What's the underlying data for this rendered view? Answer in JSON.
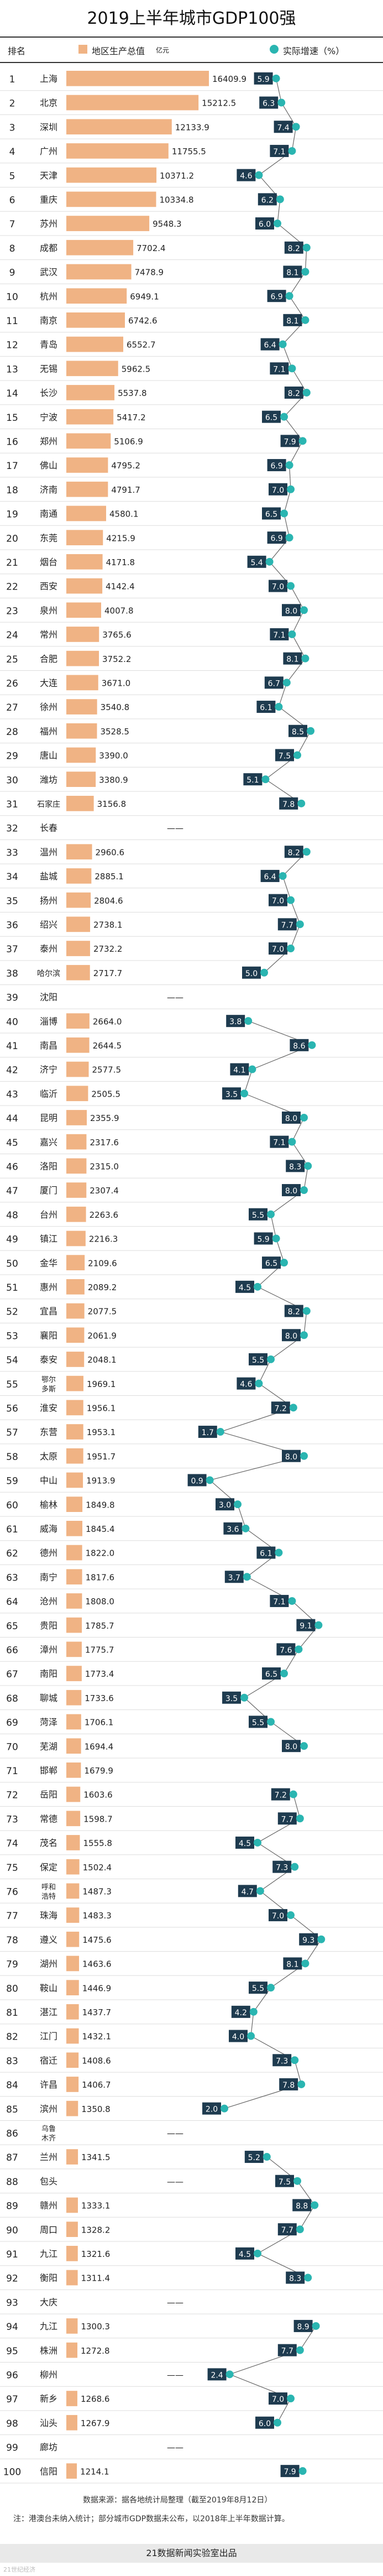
{
  "title": "2019上半年城市GDP100强",
  "legend": {
    "rank_header": "排名",
    "gdp_label": "地区生产总值",
    "gdp_unit": "亿元",
    "growth_label": "实际增速（%）"
  },
  "colors": {
    "bar": "#f0b384",
    "dot": "#2ab5b1",
    "label_bg": "#1e3b4f",
    "text": "#222222"
  },
  "chart_data": {
    "type": "bar",
    "title": "2019上半年城市GDP100强",
    "series": [
      {
        "name": "地区生产总值（亿元）",
        "type": "bar"
      },
      {
        "name": "实际增速（%）",
        "type": "line"
      }
    ],
    "rows": [
      {
        "rank": "1",
        "city": "上海",
        "gdp": 16409.9,
        "gdp_label": "16409.9",
        "growth": 5.9,
        "growth_label": "5.9"
      },
      {
        "rank": "2",
        "city": "北京",
        "gdp": 15212.5,
        "gdp_label": "15212.5",
        "growth": 6.3,
        "growth_label": "6.3"
      },
      {
        "rank": "3",
        "city": "深圳",
        "gdp": 12133.9,
        "gdp_label": "12133.9",
        "growth": 7.4,
        "growth_label": "7.4"
      },
      {
        "rank": "4",
        "city": "广州",
        "gdp": 11755.5,
        "gdp_label": "11755.5",
        "growth": 7.1,
        "growth_label": "7.1"
      },
      {
        "rank": "5",
        "city": "天津",
        "gdp": 10371.2,
        "gdp_label": "10371.2",
        "growth": 4.6,
        "growth_label": "4.6"
      },
      {
        "rank": "6",
        "city": "重庆",
        "gdp": 10334.8,
        "gdp_label": "10334.8",
        "growth": 6.2,
        "growth_label": "6.2"
      },
      {
        "rank": "7",
        "city": "苏州",
        "gdp": 9548.3,
        "gdp_label": "9548.3",
        "growth": 6.0,
        "growth_label": "6.0"
      },
      {
        "rank": "8",
        "city": "成都",
        "gdp": 7702.4,
        "gdp_label": "7702.4",
        "growth": 8.2,
        "growth_label": "8.2"
      },
      {
        "rank": "9",
        "city": "武汉",
        "gdp": 7478.9,
        "gdp_label": "7478.9",
        "growth": 8.1,
        "growth_label": "8.1"
      },
      {
        "rank": "10",
        "city": "杭州",
        "gdp": 6949.1,
        "gdp_label": "6949.1",
        "growth": 6.9,
        "growth_label": "6.9"
      },
      {
        "rank": "11",
        "city": "南京",
        "gdp": 6742.6,
        "gdp_label": "6742.6",
        "growth": 8.1,
        "growth_label": "8.1"
      },
      {
        "rank": "12",
        "city": "青岛",
        "gdp": 6552.7,
        "gdp_label": "6552.7",
        "growth": 6.4,
        "growth_label": "6.4"
      },
      {
        "rank": "13",
        "city": "无锡",
        "gdp": 5962.5,
        "gdp_label": "5962.5",
        "growth": 7.1,
        "growth_label": "7.1"
      },
      {
        "rank": "14",
        "city": "长沙",
        "gdp": 5537.8,
        "gdp_label": "5537.8",
        "growth": 8.2,
        "growth_label": "8.2"
      },
      {
        "rank": "15",
        "city": "宁波",
        "gdp": 5417.2,
        "gdp_label": "5417.2",
        "growth": 6.5,
        "growth_label": "6.5"
      },
      {
        "rank": "16",
        "city": "郑州",
        "gdp": 5106.9,
        "gdp_label": "5106.9",
        "growth": 7.9,
        "growth_label": "7.9"
      },
      {
        "rank": "17",
        "city": "佛山",
        "gdp": 4795.2,
        "gdp_label": "4795.2",
        "growth": 6.9,
        "growth_label": "6.9"
      },
      {
        "rank": "18",
        "city": "济南",
        "gdp": 4791.7,
        "gdp_label": "4791.7",
        "growth": 7.0,
        "growth_label": "7.0"
      },
      {
        "rank": "19",
        "city": "南通",
        "gdp": 4580.1,
        "gdp_label": "4580.1",
        "growth": 6.5,
        "growth_label": "6.5"
      },
      {
        "rank": "20",
        "city": "东莞",
        "gdp": 4215.9,
        "gdp_label": "4215.9",
        "growth": 6.9,
        "growth_label": "6.9"
      },
      {
        "rank": "21",
        "city": "烟台",
        "gdp": 4171.8,
        "gdp_label": "4171.8",
        "growth": 5.4,
        "growth_label": "5.4"
      },
      {
        "rank": "22",
        "city": "西安",
        "gdp": 4142.4,
        "gdp_label": "4142.4",
        "growth": 7.0,
        "growth_label": "7.0"
      },
      {
        "rank": "23",
        "city": "泉州",
        "gdp": 4007.8,
        "gdp_label": "4007.8",
        "growth": 8.0,
        "growth_label": "8.0"
      },
      {
        "rank": "24",
        "city": "常州",
        "gdp": 3765.6,
        "gdp_label": "3765.6",
        "growth": 7.1,
        "growth_label": "7.1"
      },
      {
        "rank": "25",
        "city": "合肥",
        "gdp": 3752.2,
        "gdp_label": "3752.2",
        "growth": 8.1,
        "growth_label": "8.1"
      },
      {
        "rank": "26",
        "city": "大连",
        "gdp": 3671.0,
        "gdp_label": "3671.0",
        "growth": 6.7,
        "growth_label": "6.7"
      },
      {
        "rank": "27",
        "city": "徐州",
        "gdp": 3540.8,
        "gdp_label": "3540.8",
        "growth": 6.1,
        "growth_label": "6.1"
      },
      {
        "rank": "28",
        "city": "福州",
        "gdp": 3528.5,
        "gdp_label": "3528.5",
        "growth": 8.5,
        "growth_label": "8.5"
      },
      {
        "rank": "29",
        "city": "唐山",
        "gdp": 3390.0,
        "gdp_label": "3390.0",
        "growth": 7.5,
        "growth_label": "7.5"
      },
      {
        "rank": "30",
        "city": "潍坊",
        "gdp": 3380.9,
        "gdp_label": "3380.9",
        "growth": 5.1,
        "growth_label": "5.1"
      },
      {
        "rank": "31",
        "city": "石家庄",
        "gdp": 3156.8,
        "gdp_label": "3156.8",
        "growth": 7.8,
        "growth_label": "7.8"
      },
      {
        "rank": "32",
        "city": "长春",
        "gdp": null,
        "gdp_label": "——",
        "growth": null,
        "growth_label": ""
      },
      {
        "rank": "33",
        "city": "温州",
        "gdp": 2960.6,
        "gdp_label": "2960.6",
        "growth": 8.2,
        "growth_label": "8.2"
      },
      {
        "rank": "34",
        "city": "盐城",
        "gdp": 2885.1,
        "gdp_label": "2885.1",
        "growth": 6.4,
        "growth_label": "6.4"
      },
      {
        "rank": "35",
        "city": "扬州",
        "gdp": 2804.6,
        "gdp_label": "2804.6",
        "growth": 7.0,
        "growth_label": "7.0"
      },
      {
        "rank": "36",
        "city": "绍兴",
        "gdp": 2738.1,
        "gdp_label": "2738.1",
        "growth": 7.7,
        "growth_label": "7.7"
      },
      {
        "rank": "37",
        "city": "泰州",
        "gdp": 2732.2,
        "gdp_label": "2732.2",
        "growth": 7.0,
        "growth_label": "7.0"
      },
      {
        "rank": "38",
        "city": "哈尔滨",
        "gdp": 2717.7,
        "gdp_label": "2717.7",
        "growth": 5.0,
        "growth_label": "5.0"
      },
      {
        "rank": "39",
        "city": "沈阳",
        "gdp": null,
        "gdp_label": "——",
        "growth": null,
        "growth_label": ""
      },
      {
        "rank": "40",
        "city": "淄博",
        "gdp": 2664.0,
        "gdp_label": "2664.0",
        "growth": 3.8,
        "growth_label": "3.8"
      },
      {
        "rank": "41",
        "city": "南昌",
        "gdp": 2644.5,
        "gdp_label": "2644.5",
        "growth": 8.6,
        "growth_label": "8.6"
      },
      {
        "rank": "42",
        "city": "济宁",
        "gdp": 2577.5,
        "gdp_label": "2577.5",
        "growth": 4.1,
        "growth_label": "4.1"
      },
      {
        "rank": "43",
        "city": "临沂",
        "gdp": 2505.5,
        "gdp_label": "2505.5",
        "growth": 3.5,
        "growth_label": "3.5"
      },
      {
        "rank": "44",
        "city": "昆明",
        "gdp": 2355.9,
        "gdp_label": "2355.9",
        "growth": 8.0,
        "growth_label": "8.0"
      },
      {
        "rank": "45",
        "city": "嘉兴",
        "gdp": 2317.6,
        "gdp_label": "2317.6",
        "growth": 7.1,
        "growth_label": "7.1"
      },
      {
        "rank": "46",
        "city": "洛阳",
        "gdp": 2315.0,
        "gdp_label": "2315.0",
        "growth": 8.3,
        "growth_label": "8.3"
      },
      {
        "rank": "47",
        "city": "厦门",
        "gdp": 2307.4,
        "gdp_label": "2307.4",
        "growth": 8.0,
        "growth_label": "8.0"
      },
      {
        "rank": "48",
        "city": "台州",
        "gdp": 2263.6,
        "gdp_label": "2263.6",
        "growth": 5.5,
        "growth_label": "5.5"
      },
      {
        "rank": "49",
        "city": "镇江",
        "gdp": 2216.3,
        "gdp_label": "2216.3",
        "growth": 5.9,
        "growth_label": "5.9"
      },
      {
        "rank": "50",
        "city": "金华",
        "gdp": 2109.6,
        "gdp_label": "2109.6",
        "growth": 6.5,
        "growth_label": "6.5"
      },
      {
        "rank": "51",
        "city": "惠州",
        "gdp": 2089.2,
        "gdp_label": "2089.2",
        "growth": 4.5,
        "growth_label": "4.5"
      },
      {
        "rank": "52",
        "city": "宜昌",
        "gdp": 2077.5,
        "gdp_label": "2077.5",
        "growth": 8.2,
        "growth_label": "8.2"
      },
      {
        "rank": "53",
        "city": "襄阳",
        "gdp": 2061.9,
        "gdp_label": "2061.9",
        "growth": 8.0,
        "growth_label": "8.0"
      },
      {
        "rank": "54",
        "city": "泰安",
        "gdp": 2048.1,
        "gdp_label": "2048.1",
        "growth": 5.5,
        "growth_label": "5.5"
      },
      {
        "rank": "55",
        "city": "鄂尔多斯",
        "gdp": 1969.1,
        "gdp_label": "1969.1",
        "growth": 4.6,
        "growth_label": "4.6"
      },
      {
        "rank": "56",
        "city": "淮安",
        "gdp": 1956.1,
        "gdp_label": "1956.1",
        "growth": 7.2,
        "growth_label": "7.2"
      },
      {
        "rank": "57",
        "city": "东营",
        "gdp": 1953.1,
        "gdp_label": "1953.1",
        "growth": 1.7,
        "growth_label": "1.7"
      },
      {
        "rank": "58",
        "city": "太原",
        "gdp": 1951.7,
        "gdp_label": "1951.7",
        "growth": 8.0,
        "growth_label": "8.0"
      },
      {
        "rank": "59",
        "city": "中山",
        "gdp": 1913.9,
        "gdp_label": "1913.9",
        "growth": 0.9,
        "growth_label": "0.9"
      },
      {
        "rank": "60",
        "city": "榆林",
        "gdp": 1849.8,
        "gdp_label": "1849.8",
        "growth": 3.0,
        "growth_label": "3.0"
      },
      {
        "rank": "61",
        "city": "威海",
        "gdp": 1845.4,
        "gdp_label": "1845.4",
        "growth": 3.6,
        "growth_label": "3.6"
      },
      {
        "rank": "62",
        "city": "德州",
        "gdp": 1822.0,
        "gdp_label": "1822.0",
        "growth": 6.1,
        "growth_label": "6.1"
      },
      {
        "rank": "63",
        "city": "南宁",
        "gdp": 1817.6,
        "gdp_label": "1817.6",
        "growth": 3.7,
        "growth_label": "3.7"
      },
      {
        "rank": "64",
        "city": "沧州",
        "gdp": 1808.0,
        "gdp_label": "1808.0",
        "growth": 7.1,
        "growth_label": "7.1"
      },
      {
        "rank": "65",
        "city": "贵阳",
        "gdp": 1785.7,
        "gdp_label": "1785.7",
        "growth": 9.1,
        "growth_label": "9.1"
      },
      {
        "rank": "66",
        "city": "漳州",
        "gdp": 1775.7,
        "gdp_label": "1775.7",
        "growth": 7.6,
        "growth_label": "7.6"
      },
      {
        "rank": "67",
        "city": "南阳",
        "gdp": 1773.4,
        "gdp_label": "1773.4",
        "growth": 6.5,
        "growth_label": "6.5"
      },
      {
        "rank": "68",
        "city": "聊城",
        "gdp": 1733.6,
        "gdp_label": "1733.6",
        "growth": 3.5,
        "growth_label": "3.5"
      },
      {
        "rank": "69",
        "city": "菏泽",
        "gdp": 1706.1,
        "gdp_label": "1706.1",
        "growth": 5.5,
        "growth_label": "5.5"
      },
      {
        "rank": "70",
        "city": "芜湖",
        "gdp": 1694.4,
        "gdp_label": "1694.4",
        "growth": 8.0,
        "growth_label": "8.0"
      },
      {
        "rank": "71",
        "city": "邯郸",
        "gdp": 1679.9,
        "gdp_label": "1679.9",
        "growth": null,
        "growth_label": ""
      },
      {
        "rank": "72",
        "city": "岳阳",
        "gdp": 1603.6,
        "gdp_label": "1603.6",
        "growth": 7.2,
        "growth_label": "7.2"
      },
      {
        "rank": "73",
        "city": "常德",
        "gdp": 1598.7,
        "gdp_label": "1598.7",
        "growth": 7.7,
        "growth_label": "7.7"
      },
      {
        "rank": "74",
        "city": "茂名",
        "gdp": 1555.8,
        "gdp_label": "1555.8",
        "growth": 4.5,
        "growth_label": "4.5"
      },
      {
        "rank": "75",
        "city": "保定",
        "gdp": 1502.4,
        "gdp_label": "1502.4",
        "growth": 7.3,
        "growth_label": "7.3"
      },
      {
        "rank": "76",
        "city": "呼和浩特",
        "gdp": 1487.3,
        "gdp_label": "1487.3",
        "growth": 4.7,
        "growth_label": "4.7"
      },
      {
        "rank": "77",
        "city": "珠海",
        "gdp": 1483.3,
        "gdp_label": "1483.3",
        "growth": 7.0,
        "growth_label": "7.0"
      },
      {
        "rank": "78",
        "city": "遵义",
        "gdp": 1475.6,
        "gdp_label": "1475.6",
        "growth": 9.3,
        "growth_label": "9.3"
      },
      {
        "rank": "79",
        "city": "湖州",
        "gdp": 1463.6,
        "gdp_label": "1463.6",
        "growth": 8.1,
        "growth_label": "8.1"
      },
      {
        "rank": "80",
        "city": "鞍山",
        "gdp": 1446.9,
        "gdp_label": "1446.9",
        "growth": 5.5,
        "growth_label": "5.5"
      },
      {
        "rank": "81",
        "city": "湛江",
        "gdp": 1437.7,
        "gdp_label": "1437.7",
        "growth": 4.2,
        "growth_label": "4.2"
      },
      {
        "rank": "82",
        "city": "江门",
        "gdp": 1432.1,
        "gdp_label": "1432.1",
        "growth": 4.0,
        "growth_label": "4.0"
      },
      {
        "rank": "83",
        "city": "宿迁",
        "gdp": 1408.6,
        "gdp_label": "1408.6",
        "growth": 7.3,
        "growth_label": "7.3"
      },
      {
        "rank": "84",
        "city": "许昌",
        "gdp": 1406.7,
        "gdp_label": "1406.7",
        "growth": 7.8,
        "growth_label": "7.8"
      },
      {
        "rank": "85",
        "city": "滨州",
        "gdp": 1350.8,
        "gdp_label": "1350.8",
        "growth": 2.0,
        "growth_label": "2.0"
      },
      {
        "rank": "86",
        "city": "乌鲁木齐",
        "gdp": null,
        "gdp_label": "——",
        "growth": null,
        "growth_label": ""
      },
      {
        "rank": "87",
        "city": "兰州",
        "gdp": 1341.5,
        "gdp_label": "1341.5",
        "growth": 5.2,
        "growth_label": "5.2"
      },
      {
        "rank": "88",
        "city": "包头",
        "gdp": null,
        "gdp_label": "——",
        "growth": 7.5,
        "growth_label": "7.5"
      },
      {
        "rank": "89",
        "city": "赣州",
        "gdp": 1333.1,
        "gdp_label": "1333.1",
        "growth": 8.8,
        "growth_label": "8.8"
      },
      {
        "rank": "90",
        "city": "周口",
        "gdp": 1328.2,
        "gdp_label": "1328.2",
        "growth": 7.7,
        "growth_label": "7.7"
      },
      {
        "rank": "91",
        "city": "九江",
        "gdp": 1321.6,
        "gdp_label": "1321.6",
        "growth": 4.5,
        "growth_label": "4.5"
      },
      {
        "rank": "92",
        "city": "衡阳",
        "gdp": 1311.4,
        "gdp_label": "1311.4",
        "growth": 8.3,
        "growth_label": "8.3"
      },
      {
        "rank": "93",
        "city": "大庆",
        "gdp": null,
        "gdp_label": "——",
        "growth": null,
        "growth_label": ""
      },
      {
        "rank": "94",
        "city": "九江",
        "gdp": 1300.3,
        "gdp_label": "1300.3",
        "growth": 8.9,
        "growth_label": "8.9"
      },
      {
        "rank": "95",
        "city": "株洲",
        "gdp": 1272.8,
        "gdp_label": "1272.8",
        "growth": 7.7,
        "growth_label": "7.7"
      },
      {
        "rank": "96",
        "city": "柳州",
        "gdp": null,
        "gdp_label": "——",
        "growth": 2.4,
        "growth_label": "2.4"
      },
      {
        "rank": "97",
        "city": "新乡",
        "gdp": 1268.6,
        "gdp_label": "1268.6",
        "growth": 7.0,
        "growth_label": "7.0"
      },
      {
        "rank": "98",
        "city": "汕头",
        "gdp": 1267.9,
        "gdp_label": "1267.9",
        "growth": 6.0,
        "growth_label": "6.0"
      },
      {
        "rank": "99",
        "city": "廊坊",
        "gdp": null,
        "gdp_label": "——",
        "growth": null,
        "growth_label": ""
      },
      {
        "rank": "100",
        "city": "信阳",
        "gdp": 1214.1,
        "gdp_label": "1214.1",
        "growth": 7.9,
        "growth_label": "7.9"
      }
    ]
  },
  "footer": {
    "source": "数据来源：据各地统计局整理（截至2019年8月12日）",
    "note": "注：港澳台未纳入统计；部分城市GDP数据未公布，以2018年上半年数据计算。",
    "brand": "21数据新闻实验室出品",
    "watermark": "21世纪经济"
  }
}
